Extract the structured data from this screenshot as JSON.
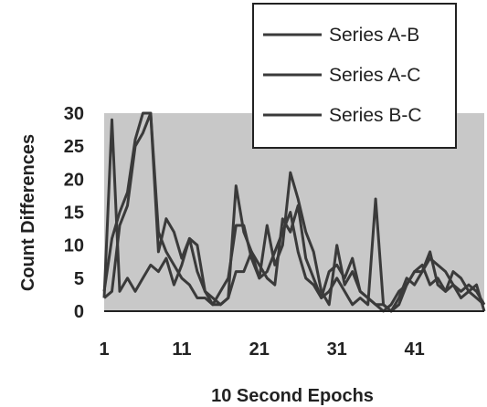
{
  "chart_data": {
    "type": "line",
    "xlabel": "10 Second Epochs",
    "ylabel": "Count Differences",
    "xlim": [
      1,
      50
    ],
    "ylim": [
      0,
      30
    ],
    "xticks": [
      1,
      11,
      21,
      31,
      41
    ],
    "yticks": [
      0,
      5,
      10,
      15,
      20,
      25,
      30
    ],
    "grid": false,
    "legend": "top-right",
    "plot_background": "#c8c8c8",
    "line_color": "#3a3a3a",
    "x": [
      1,
      2,
      3,
      4,
      5,
      6,
      7,
      8,
      9,
      10,
      11,
      12,
      13,
      14,
      15,
      16,
      17,
      18,
      19,
      20,
      21,
      22,
      23,
      24,
      25,
      26,
      27,
      28,
      29,
      30,
      31,
      32,
      33,
      34,
      35,
      36,
      37,
      38,
      39,
      40,
      41,
      42,
      43,
      44,
      45,
      46,
      47,
      48,
      49,
      50
    ],
    "series": [
      {
        "name": "Series A-B",
        "values": [
          2,
          29,
          3,
          5,
          3,
          5,
          7,
          6,
          8,
          4,
          7,
          11,
          6,
          3,
          2,
          1,
          2,
          19,
          12,
          9,
          5,
          6,
          9,
          12,
          15,
          9,
          5,
          4,
          2,
          3,
          5,
          3,
          1,
          2,
          1,
          17,
          1,
          0,
          2,
          5,
          4,
          6,
          9,
          4,
          3,
          6,
          5,
          3,
          2,
          1
        ]
      },
      {
        "name": "Series A-C",
        "values": [
          3,
          11,
          15,
          18,
          26,
          30,
          30,
          12,
          9,
          7,
          5,
          4,
          2,
          2,
          1,
          3,
          5,
          13,
          13,
          8,
          5,
          13,
          7,
          10,
          21,
          17,
          12,
          9,
          3,
          1,
          10,
          4,
          6,
          3,
          2,
          1,
          0,
          1,
          3,
          4,
          6,
          7,
          4,
          5,
          3,
          4,
          2,
          3,
          4,
          0
        ]
      },
      {
        "name": "Series B-C",
        "values": [
          2,
          3,
          13,
          16,
          25,
          27,
          30,
          9,
          14,
          12,
          8,
          11,
          10,
          3,
          1,
          1,
          2,
          6,
          6,
          9,
          7,
          5,
          4,
          14,
          12,
          16,
          8,
          5,
          2,
          6,
          7,
          5,
          8,
          3,
          2,
          1,
          1,
          0,
          1,
          4,
          6,
          6,
          8,
          7,
          6,
          4,
          3,
          4,
          3,
          1
        ]
      }
    ]
  }
}
